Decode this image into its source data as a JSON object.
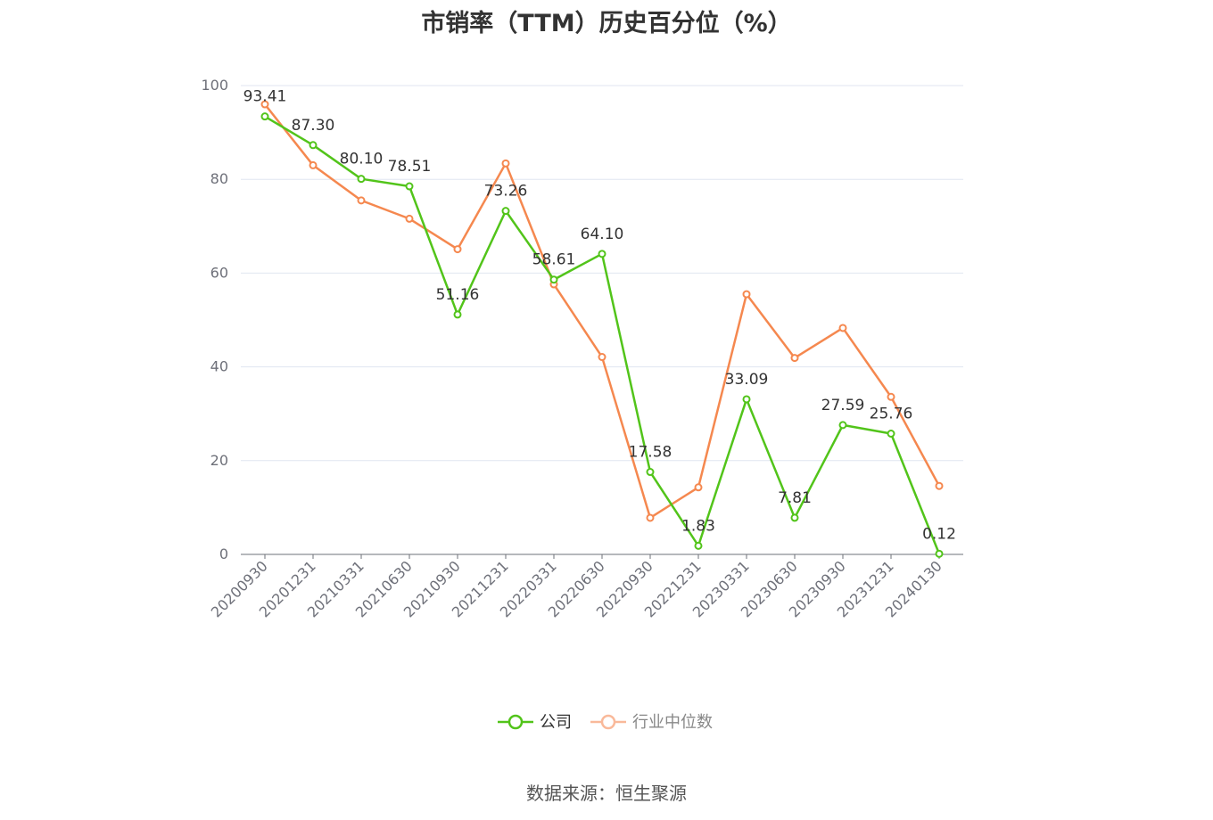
{
  "chart_data": {
    "type": "line",
    "title": "市销率（TTM）历史百分位（%）",
    "categories": [
      "20200930",
      "20201231",
      "20210331",
      "20210630",
      "20210930",
      "20211231",
      "20220331",
      "20220630",
      "20220930",
      "20221231",
      "20230331",
      "20230630",
      "20230930",
      "20231231",
      "20240130"
    ],
    "series": [
      {
        "name": "公司",
        "color": "#52c41a",
        "values": [
          93.41,
          87.3,
          80.1,
          78.51,
          51.16,
          73.26,
          58.61,
          64.1,
          17.58,
          1.83,
          33.09,
          7.81,
          27.59,
          25.76,
          0.12
        ],
        "labels": [
          "93.41",
          "87.30",
          "80.10",
          "78.51",
          "51.16",
          "73.26",
          "58.61",
          "64.10",
          "17.58",
          "1.83",
          "33.09",
          "7.81",
          "27.59",
          "25.76",
          "0.12"
        ]
      },
      {
        "name": "行业中位数",
        "color": "#f5884f",
        "values": [
          96.0,
          83.0,
          75.5,
          71.6,
          65.1,
          83.4,
          57.6,
          42.1,
          7.8,
          14.3,
          55.5,
          41.9,
          48.3,
          33.6,
          14.6
        ]
      }
    ],
    "yaxis": {
      "min": 0,
      "max": 100,
      "ticks": [
        "0",
        "20",
        "40",
        "60",
        "80",
        "100"
      ]
    },
    "legend_position": "bottom-center",
    "grid": true
  },
  "footer": {
    "source": "数据来源：恒生聚源"
  }
}
